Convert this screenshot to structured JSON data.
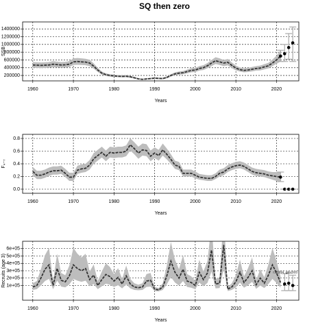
{
  "title": "SQ then zero",
  "chart_data": [
    {
      "type": "line",
      "xlabel": "Years",
      "ylabel": "SSB",
      "grid": true,
      "color": "#333333",
      "band_color": "#bdbdbd",
      "proj_color": "#000000",
      "errbar_color": "#aaaaaa",
      "xlim": [
        1957.5,
        2025.5
      ],
      "ylim": [
        60000,
        1580000
      ],
      "xticks": [
        1960,
        1970,
        1980,
        1990,
        2000,
        2010,
        2020
      ],
      "yticks": [
        200000,
        400000,
        600000,
        800000,
        1000000,
        1200000,
        1400000
      ],
      "x": [
        1960,
        1961,
        1962,
        1963,
        1964,
        1965,
        1966,
        1967,
        1968,
        1969,
        1970,
        1971,
        1972,
        1973,
        1974,
        1975,
        1976,
        1977,
        1978,
        1979,
        1980,
        1981,
        1982,
        1983,
        1984,
        1985,
        1986,
        1987,
        1988,
        1989,
        1990,
        1991,
        1992,
        1993,
        1994,
        1995,
        1996,
        1997,
        1998,
        1999,
        2000,
        2001,
        2002,
        2003,
        2004,
        2005,
        2006,
        2007,
        2008,
        2009,
        2010,
        2011,
        2012,
        2013,
        2014,
        2015,
        2016,
        2017,
        2018,
        2019,
        2020,
        2021
      ],
      "values": [
        470000,
        465000,
        460000,
        465000,
        470000,
        490000,
        480000,
        470000,
        475000,
        490000,
        550000,
        560000,
        550000,
        545000,
        520000,
        440000,
        340000,
        260000,
        220000,
        200000,
        190000,
        180000,
        175000,
        180000,
        165000,
        140000,
        110000,
        100000,
        110000,
        120000,
        130000,
        125000,
        120000,
        150000,
        200000,
        240000,
        260000,
        270000,
        300000,
        330000,
        340000,
        380000,
        400000,
        450000,
        520000,
        580000,
        550000,
        520000,
        540000,
        460000,
        390000,
        350000,
        330000,
        340000,
        360000,
        380000,
        390000,
        420000,
        450000,
        520000,
        600000,
        700000
      ],
      "lower": [
        400000,
        395000,
        390000,
        395000,
        400000,
        415000,
        410000,
        400000,
        405000,
        415000,
        470000,
        475000,
        470000,
        465000,
        440000,
        375000,
        290000,
        220000,
        185000,
        170000,
        160000,
        155000,
        150000,
        155000,
        140000,
        120000,
        95000,
        85000,
        95000,
        100000,
        110000,
        105000,
        100000,
        125000,
        170000,
        205000,
        220000,
        230000,
        255000,
        280000,
        290000,
        325000,
        340000,
        385000,
        440000,
        495000,
        470000,
        440000,
        460000,
        390000,
        330000,
        300000,
        280000,
        290000,
        305000,
        325000,
        330000,
        355000,
        380000,
        440000,
        500000,
        560000
      ],
      "upper": [
        545000,
        540000,
        535000,
        540000,
        545000,
        570000,
        555000,
        545000,
        550000,
        570000,
        640000,
        650000,
        640000,
        630000,
        605000,
        510000,
        395000,
        300000,
        255000,
        230000,
        220000,
        210000,
        205000,
        210000,
        190000,
        165000,
        130000,
        115000,
        130000,
        140000,
        150000,
        145000,
        140000,
        175000,
        230000,
        280000,
        300000,
        315000,
        350000,
        385000,
        395000,
        440000,
        465000,
        520000,
        600000,
        670000,
        640000,
        600000,
        625000,
        535000,
        455000,
        405000,
        385000,
        395000,
        420000,
        440000,
        455000,
        490000,
        525000,
        610000,
        710000,
        850000
      ],
      "proj_x": [
        2021,
        2022,
        2023,
        2024
      ],
      "proj_values": [
        700000,
        760000,
        920000,
        1040000
      ],
      "proj_lower": [
        560000,
        560000,
        620000,
        560000
      ],
      "proj_upper": [
        850000,
        1000000,
        1280000,
        1450000
      ]
    },
    {
      "type": "line",
      "xlabel": "Years",
      "ylabel": "F₄₋₇",
      "grid": true,
      "color": "#333333",
      "band_color": "#bdbdbd",
      "proj_color": "#000000",
      "errbar_color": "#aaaaaa",
      "xlim": [
        1957.5,
        2025.5
      ],
      "ylim": [
        -0.065,
        0.865
      ],
      "xticks": [
        1960,
        1970,
        1980,
        1990,
        2000,
        2010,
        2020
      ],
      "yticks": [
        {
          "value": 0,
          "label": "0.0"
        },
        0.2,
        0.4,
        0.6,
        0.8
      ],
      "x": [
        1960,
        1961,
        1962,
        1963,
        1964,
        1965,
        1966,
        1967,
        1968,
        1969,
        1970,
        1971,
        1972,
        1973,
        1974,
        1975,
        1976,
        1977,
        1978,
        1979,
        1980,
        1981,
        1982,
        1983,
        1984,
        1985,
        1986,
        1987,
        1988,
        1989,
        1990,
        1991,
        1992,
        1993,
        1994,
        1995,
        1996,
        1997,
        1998,
        1999,
        2000,
        2001,
        2002,
        2003,
        2004,
        2005,
        2006,
        2007,
        2008,
        2009,
        2010,
        2011,
        2012,
        2013,
        2014,
        2015,
        2016,
        2017,
        2018,
        2019,
        2020,
        2021
      ],
      "values": [
        0.28,
        0.22,
        0.22,
        0.24,
        0.27,
        0.29,
        0.29,
        0.3,
        0.25,
        0.19,
        0.19,
        0.3,
        0.32,
        0.33,
        0.38,
        0.48,
        0.53,
        0.58,
        0.52,
        0.58,
        0.57,
        0.58,
        0.58,
        0.6,
        0.7,
        0.64,
        0.57,
        0.62,
        0.61,
        0.52,
        0.57,
        0.53,
        0.62,
        0.55,
        0.47,
        0.38,
        0.36,
        0.25,
        0.25,
        0.25,
        0.22,
        0.19,
        0.18,
        0.17,
        0.17,
        0.2,
        0.25,
        0.27,
        0.32,
        0.35,
        0.37,
        0.38,
        0.36,
        0.32,
        0.28,
        0.26,
        0.25,
        0.24,
        0.22,
        0.21,
        0.2,
        0.19
      ],
      "lower": [
        0.22,
        0.16,
        0.16,
        0.18,
        0.21,
        0.23,
        0.23,
        0.24,
        0.19,
        0.13,
        0.13,
        0.24,
        0.26,
        0.27,
        0.31,
        0.4,
        0.45,
        0.5,
        0.44,
        0.5,
        0.49,
        0.5,
        0.5,
        0.52,
        0.61,
        0.55,
        0.48,
        0.53,
        0.52,
        0.44,
        0.49,
        0.45,
        0.53,
        0.47,
        0.4,
        0.32,
        0.3,
        0.2,
        0.2,
        0.2,
        0.17,
        0.15,
        0.14,
        0.13,
        0.13,
        0.16,
        0.2,
        0.22,
        0.27,
        0.3,
        0.32,
        0.33,
        0.31,
        0.27,
        0.23,
        0.21,
        0.2,
        0.19,
        0.17,
        0.15,
        0.13,
        0.12
      ],
      "upper": [
        0.35,
        0.29,
        0.29,
        0.31,
        0.34,
        0.36,
        0.36,
        0.37,
        0.32,
        0.26,
        0.26,
        0.37,
        0.39,
        0.4,
        0.46,
        0.57,
        0.62,
        0.67,
        0.61,
        0.67,
        0.66,
        0.67,
        0.67,
        0.69,
        0.8,
        0.74,
        0.67,
        0.72,
        0.71,
        0.61,
        0.66,
        0.62,
        0.72,
        0.64,
        0.55,
        0.45,
        0.43,
        0.31,
        0.31,
        0.31,
        0.28,
        0.24,
        0.23,
        0.22,
        0.22,
        0.25,
        0.31,
        0.33,
        0.38,
        0.41,
        0.43,
        0.44,
        0.42,
        0.38,
        0.34,
        0.32,
        0.31,
        0.3,
        0.28,
        0.27,
        0.27,
        0.27
      ],
      "proj_x": [
        2021,
        2022,
        2023,
        2024
      ],
      "proj_values": [
        0.19,
        0,
        0,
        0
      ],
      "proj_lower": [
        0.12,
        0,
        0,
        0
      ],
      "proj_upper": [
        0.27,
        0,
        0,
        0
      ]
    },
    {
      "type": "line",
      "xlabel": "Years",
      "ylabel": "Recruits (age 3)",
      "grid": true,
      "color": "#333333",
      "band_color": "#bdbdbd",
      "proj_color": "#000000",
      "errbar_color": "#aaaaaa",
      "annotation": "r18384, git:c9c6",
      "xlim": [
        1957.5,
        2025.5
      ],
      "ylim": [
        -100000,
        700000
      ],
      "xticks": [
        1960,
        1970,
        1980,
        1990,
        2000,
        2010,
        2020
      ],
      "yticks": [
        {
          "value": 100000,
          "label": "1e+05"
        },
        {
          "value": 200000,
          "label": "2e+05"
        },
        {
          "value": 300000,
          "label": "3e+05"
        },
        {
          "value": 400000,
          "label": "4e+05"
        },
        {
          "value": 500000,
          "label": "5e+05"
        },
        {
          "value": 600000,
          "label": "6e+05"
        }
      ],
      "x": [
        1960,
        1961,
        1962,
        1963,
        1964,
        1965,
        1966,
        1967,
        1968,
        1969,
        1970,
        1971,
        1972,
        1973,
        1974,
        1975,
        1976,
        1977,
        1978,
        1979,
        1980,
        1981,
        1982,
        1983,
        1984,
        1985,
        1986,
        1987,
        1988,
        1989,
        1990,
        1991,
        1992,
        1993,
        1994,
        1995,
        1996,
        1997,
        1998,
        1999,
        2000,
        2001,
        2002,
        2003,
        2004,
        2005,
        2006,
        2007,
        2008,
        2009,
        2010,
        2011,
        2012,
        2013,
        2014,
        2015,
        2016,
        2017,
        2018,
        2019,
        2020,
        2021
      ],
      "values": [
        80000,
        100000,
        200000,
        320000,
        380000,
        100000,
        330000,
        170000,
        150000,
        230000,
        380000,
        330000,
        300000,
        330000,
        180000,
        240000,
        100000,
        180000,
        250000,
        220000,
        160000,
        210000,
        120000,
        230000,
        120000,
        80000,
        70000,
        80000,
        160000,
        170000,
        50000,
        40000,
        80000,
        230000,
        430000,
        280000,
        200000,
        320000,
        160000,
        140000,
        100000,
        280000,
        180000,
        270000,
        580000,
        120000,
        130000,
        650000,
        50000,
        80000,
        150000,
        280000,
        140000,
        210000,
        300000,
        110000,
        200000,
        130000,
        240000,
        380000,
        270000,
        140000
      ],
      "lower": [
        40000,
        50000,
        100000,
        160000,
        190000,
        50000,
        165000,
        85000,
        75000,
        115000,
        190000,
        165000,
        150000,
        165000,
        90000,
        120000,
        50000,
        90000,
        125000,
        110000,
        80000,
        105000,
        60000,
        115000,
        60000,
        40000,
        35000,
        40000,
        80000,
        85000,
        25000,
        20000,
        40000,
        115000,
        215000,
        140000,
        100000,
        160000,
        80000,
        70000,
        50000,
        140000,
        90000,
        135000,
        290000,
        60000,
        65000,
        325000,
        25000,
        40000,
        75000,
        140000,
        70000,
        105000,
        150000,
        55000,
        100000,
        65000,
        120000,
        190000,
        135000,
        70000
      ],
      "upper": [
        130000,
        160000,
        320000,
        510000,
        610000,
        160000,
        530000,
        270000,
        240000,
        370000,
        610000,
        530000,
        480000,
        530000,
        290000,
        385000,
        160000,
        290000,
        400000,
        350000,
        255000,
        335000,
        190000,
        370000,
        190000,
        130000,
        110000,
        130000,
        255000,
        270000,
        80000,
        65000,
        130000,
        370000,
        690000,
        450000,
        320000,
        510000,
        255000,
        225000,
        160000,
        450000,
        290000,
        430000,
        930000,
        190000,
        210000,
        1040000,
        80000,
        130000,
        240000,
        450000,
        225000,
        335000,
        480000,
        175000,
        320000,
        210000,
        385000,
        610000,
        430000,
        225000
      ],
      "proj_x": [
        2022,
        2023,
        2024
      ],
      "proj_values": [
        120000,
        130000,
        100000
      ],
      "proj_lower": [
        30000,
        30000,
        30000
      ],
      "proj_upper": [
        260000,
        270000,
        240000
      ]
    }
  ]
}
